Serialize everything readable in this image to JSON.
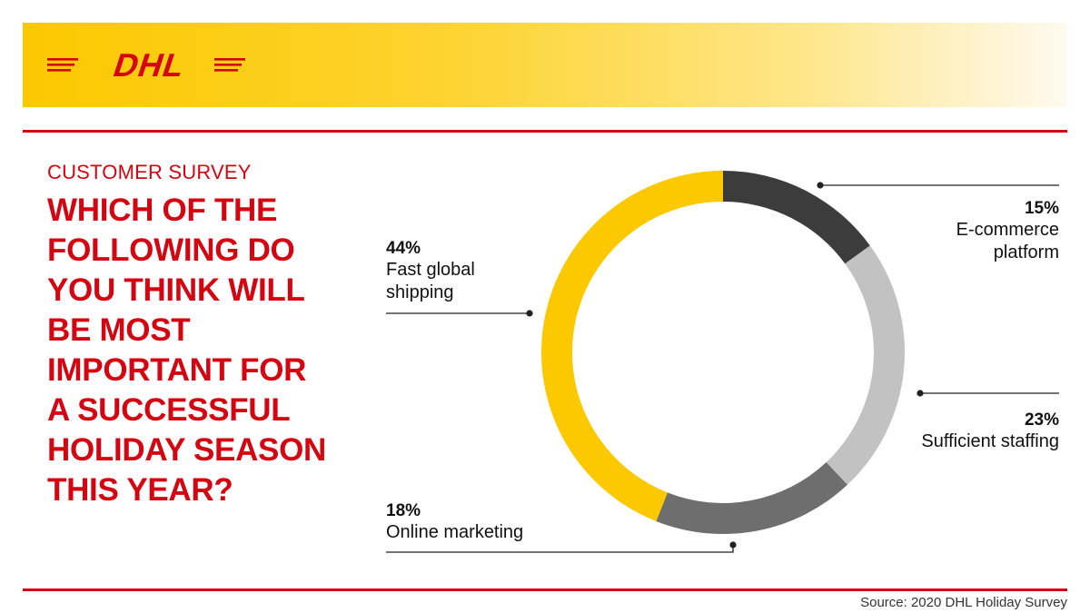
{
  "brand": {
    "logo_text": "DHL",
    "red": "#d40511",
    "yellow": "#fcc800"
  },
  "survey": {
    "eyebrow": "CUSTOMER SURVEY",
    "question_lines": [
      "WHICH OF THE",
      "FOLLOWING DO",
      "YOU THINK WILL",
      "BE MOST",
      "IMPORTANT FOR",
      "A SUCCESSFUL",
      "HOLIDAY SEASON",
      "THIS YEAR?"
    ]
  },
  "chart_data": {
    "type": "pie",
    "style": "donut",
    "start": "top, clockwise",
    "slices": [
      {
        "label": "E-commerce platform",
        "label_lines": [
          "E-commerce",
          "platform"
        ],
        "value": 15,
        "pct_text": "15%",
        "color": "#3c3c3c"
      },
      {
        "label": "Sufficient staffing",
        "label_lines": [
          "Sufficient staffing"
        ],
        "value": 23,
        "pct_text": "23%",
        "color": "#c2c2c2"
      },
      {
        "label": "Online marketing",
        "label_lines": [
          "Online marketing"
        ],
        "value": 18,
        "pct_text": "18%",
        "color": "#6e6e6e"
      },
      {
        "label": "Fast global shipping",
        "label_lines": [
          "Fast global",
          "shipping"
        ],
        "value": 44,
        "pct_text": "44%",
        "color": "#fcc800"
      }
    ]
  },
  "source": "Source: 2020 DHL Holiday Survey"
}
